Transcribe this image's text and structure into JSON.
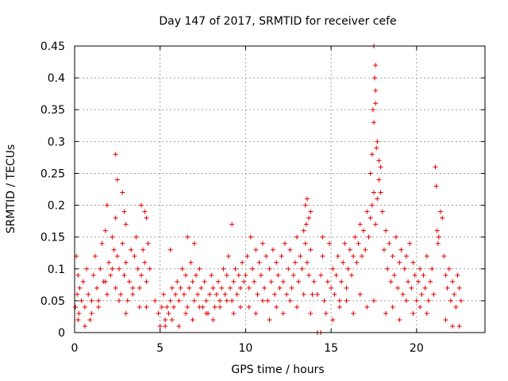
{
  "chart_data": {
    "type": "scatter",
    "title": "Day 147 of 2017, SRMTID for receiver cefe",
    "xlabel": "GPS time / hours",
    "ylabel": "SRMTID / TECUs",
    "xlim": [
      0,
      24
    ],
    "ylim": [
      0,
      0.45
    ],
    "grid": true,
    "marker": "plus",
    "marker_color": "#e00000",
    "xticks": [
      0,
      5,
      10,
      15,
      20
    ],
    "xtick_labels": [
      "0",
      "5",
      "10",
      "15",
      "20"
    ],
    "yticks": [
      0,
      0.05,
      0.1,
      0.15,
      0.2,
      0.25,
      0.3,
      0.35,
      0.4,
      0.45
    ],
    "ytick_labels": [
      "0",
      "0.05",
      "0.1",
      "0.15",
      "0.2",
      "0.25",
      "0.3",
      "0.35",
      "0.4",
      "0.45"
    ],
    "series": [
      {
        "name": "SRMTID",
        "x": [
          0.05,
          0.1,
          0.15,
          0.2,
          0.25,
          0.3,
          0.4,
          0.5,
          0.6,
          0.7,
          0.8,
          0.9,
          1.0,
          1.1,
          1.2,
          1.3,
          1.4,
          1.5,
          1.6,
          1.7,
          1.8,
          1.9,
          2.0,
          2.1,
          2.2,
          2.3,
          2.4,
          2.5,
          2.6,
          2.7,
          2.8,
          2.9,
          3.0,
          3.1,
          3.2,
          3.3,
          3.4,
          3.5,
          3.6,
          3.7,
          3.8,
          3.9,
          4.0,
          4.1,
          4.2,
          4.3,
          4.4,
          0.2,
          0.6,
          1.0,
          1.4,
          1.8,
          2.2,
          2.6,
          3.0,
          3.4,
          3.8,
          4.2,
          1.9,
          2.4,
          2.5,
          2.4,
          2.8,
          3.0,
          2.9,
          3.9,
          4.2,
          4.1,
          4.7,
          4.9,
          5.0,
          5.1,
          5.2,
          5.3,
          5.4,
          5.5,
          5.6,
          5.7,
          5.8,
          5.9,
          6.0,
          6.1,
          6.2,
          6.3,
          6.4,
          6.5,
          6.6,
          6.7,
          6.8,
          6.9,
          7.0,
          7.1,
          7.2,
          7.3,
          7.4,
          7.5,
          7.6,
          7.7,
          7.8,
          7.9,
          8.0,
          8.1,
          8.2,
          8.3,
          8.4,
          8.5,
          8.6,
          8.7,
          8.8,
          8.9,
          9.0,
          9.1,
          9.2,
          9.3,
          9.4,
          9.5,
          9.6,
          9.7,
          9.8,
          9.9,
          5.3,
          5.7,
          6.1,
          6.5,
          6.9,
          7.3,
          7.7,
          8.1,
          8.5,
          8.9,
          9.3,
          9.7,
          6.6,
          7.0,
          9.2,
          5.6,
          10.0,
          10.1,
          10.2,
          10.3,
          10.4,
          10.5,
          10.6,
          10.7,
          10.8,
          10.9,
          11.0,
          11.1,
          11.2,
          11.3,
          11.4,
          11.5,
          11.6,
          11.7,
          11.8,
          11.9,
          12.0,
          12.1,
          12.2,
          12.3,
          12.4,
          12.5,
          12.6,
          12.7,
          12.8,
          12.9,
          13.0,
          13.1,
          13.2,
          13.3,
          13.4,
          13.5,
          13.6,
          13.7,
          13.8,
          13.9,
          14.0,
          10.2,
          10.6,
          11.0,
          11.4,
          11.8,
          12.2,
          12.6,
          13.0,
          13.4,
          13.8,
          13.5,
          13.6,
          13.7,
          13.8,
          13.55,
          14.5,
          14.2,
          14.4,
          14.5,
          14.6,
          14.8,
          14.9,
          15.0,
          15.1,
          15.2,
          15.3,
          15.4,
          15.5,
          15.6,
          15.7,
          15.8,
          15.9,
          16.0,
          16.1,
          16.2,
          16.3,
          16.4,
          16.5,
          16.6,
          16.7,
          16.8,
          16.9,
          17.0,
          17.1,
          17.2,
          17.3,
          17.4,
          17.5,
          17.6,
          17.7,
          17.8,
          17.9,
          14.7,
          15.1,
          15.5,
          15.9,
          16.3,
          16.7,
          17.1,
          17.5,
          17.4,
          17.5,
          17.6,
          17.55,
          17.45,
          17.6,
          17.7,
          17.5,
          17.8,
          17.6,
          17.65,
          17.9,
          17.3,
          18.0,
          18.1,
          18.2,
          18.3,
          18.4,
          18.5,
          18.6,
          18.7,
          18.8,
          18.9,
          19.0,
          19.1,
          19.2,
          19.3,
          19.4,
          19.5,
          19.6,
          19.7,
          19.8,
          19.9,
          20.0,
          20.1,
          20.2,
          20.3,
          20.4,
          20.5,
          20.6,
          20.7,
          20.8,
          20.9,
          21.0,
          18.2,
          18.6,
          19.0,
          19.4,
          19.8,
          20.2,
          20.6,
          21.1,
          21.15,
          21.2,
          21.3,
          21.25,
          21.4,
          21.5,
          21.6,
          21.7,
          21.8,
          21.9,
          22.0,
          22.1,
          22.2,
          22.3,
          22.4,
          22.5,
          22.6,
          21.7,
          22.1,
          22.5,
          14.2,
          14.4
        ],
        "y": [
          0.04,
          0.12,
          0.06,
          0.09,
          0.03,
          0.07,
          0.05,
          0.08,
          0.04,
          0.1,
          0.06,
          0.02,
          0.05,
          0.09,
          0.12,
          0.07,
          0.04,
          0.1,
          0.14,
          0.08,
          0.16,
          0.06,
          0.11,
          0.09,
          0.15,
          0.13,
          0.07,
          0.12,
          0.1,
          0.06,
          0.14,
          0.09,
          0.11,
          0.05,
          0.08,
          0.13,
          0.07,
          0.12,
          0.15,
          0.1,
          0.04,
          0.09,
          0.13,
          0.11,
          0.08,
          0.14,
          0.1,
          0.02,
          0.01,
          0.03,
          0.05,
          0.08,
          0.1,
          0.05,
          0.03,
          0.06,
          0.07,
          0.04,
          0.2,
          0.28,
          0.24,
          0.18,
          0.22,
          0.17,
          0.19,
          0.2,
          0.18,
          0.19,
          0.05,
          0.03,
          0.01,
          0.04,
          0.06,
          0.02,
          0.04,
          0.03,
          0.05,
          0.07,
          0.04,
          0.06,
          0.08,
          0.05,
          0.07,
          0.1,
          0.06,
          0.09,
          0.04,
          0.07,
          0.11,
          0.08,
          0.05,
          0.09,
          0.06,
          0.1,
          0.07,
          0.04,
          0.08,
          0.05,
          0.03,
          0.06,
          0.09,
          0.07,
          0.04,
          0.06,
          0.08,
          0.05,
          0.07,
          0.1,
          0.06,
          0.09,
          0.12,
          0.07,
          0.05,
          0.08,
          0.1,
          0.06,
          0.09,
          0.07,
          0.11,
          0.08,
          0.01,
          0.02,
          0.01,
          0.03,
          0.02,
          0.04,
          0.03,
          0.02,
          0.04,
          0.05,
          0.03,
          0.04,
          0.15,
          0.14,
          0.17,
          0.13,
          0.09,
          0.12,
          0.07,
          0.15,
          0.1,
          0.08,
          0.13,
          0.06,
          0.11,
          0.09,
          0.14,
          0.07,
          0.12,
          0.05,
          0.1,
          0.08,
          0.13,
          0.06,
          0.11,
          0.09,
          0.07,
          0.12,
          0.08,
          0.14,
          0.06,
          0.1,
          0.13,
          0.07,
          0.09,
          0.11,
          0.15,
          0.08,
          0.12,
          0.1,
          0.16,
          0.14,
          0.11,
          0.09,
          0.13,
          0.06,
          0.08,
          0.04,
          0.03,
          0.05,
          0.02,
          0.04,
          0.03,
          0.05,
          0.04,
          0.06,
          0.03,
          0.2,
          0.21,
          0.18,
          0.19,
          0.17,
          0.15,
          0.06,
          0.09,
          0.12,
          0.05,
          0.08,
          0.14,
          0.07,
          0.1,
          0.06,
          0.09,
          0.12,
          0.05,
          0.08,
          0.11,
          0.14,
          0.07,
          0.1,
          0.13,
          0.09,
          0.12,
          0.15,
          0.11,
          0.14,
          0.17,
          0.12,
          0.16,
          0.13,
          0.19,
          0.15,
          0.18,
          0.2,
          0.22,
          0.17,
          0.21,
          0.24,
          0.26,
          0.03,
          0.02,
          0.04,
          0.05,
          0.03,
          0.06,
          0.04,
          0.05,
          0.28,
          0.33,
          0.38,
          0.4,
          0.35,
          0.36,
          0.3,
          0.45,
          0.27,
          0.42,
          0.29,
          0.22,
          0.25,
          0.19,
          0.13,
          0.16,
          0.1,
          0.14,
          0.08,
          0.12,
          0.09,
          0.15,
          0.07,
          0.11,
          0.13,
          0.06,
          0.1,
          0.12,
          0.08,
          0.14,
          0.07,
          0.11,
          0.09,
          0.05,
          0.08,
          0.1,
          0.06,
          0.09,
          0.07,
          0.12,
          0.05,
          0.08,
          0.1,
          0.06,
          0.03,
          0.04,
          0.02,
          0.05,
          0.03,
          0.04,
          0.03,
          0.26,
          0.23,
          0.16,
          0.15,
          0.14,
          0.19,
          0.18,
          0.12,
          0.09,
          0.07,
          0.1,
          0.05,
          0.08,
          0.06,
          0.04,
          0.09,
          0.07,
          0.05,
          0.02,
          0.01,
          0.01,
          0.0,
          0.0
        ]
      }
    ]
  }
}
